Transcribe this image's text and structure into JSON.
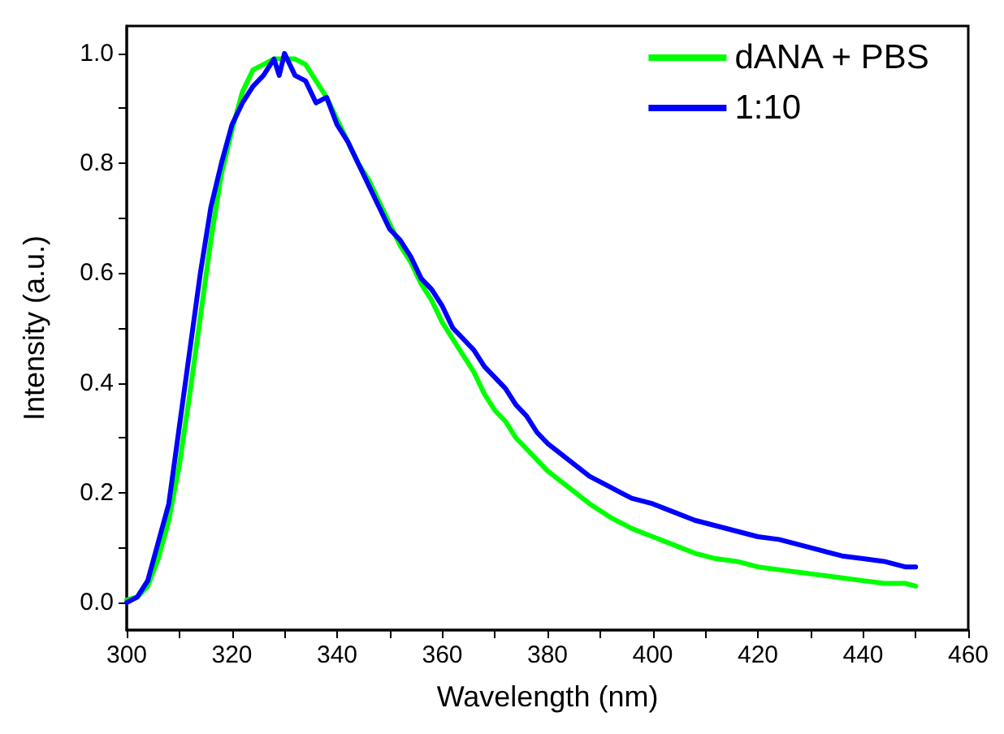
{
  "chart_data": {
    "type": "line",
    "xlabel": "Wavelength (nm)",
    "ylabel": "Intensity (a.u.)",
    "xlim": [
      300,
      460
    ],
    "xticks": [
      300,
      {
        "value": 310,
        "label": null
      },
      320,
      {
        "value": 330,
        "label": null
      },
      340,
      {
        "value": 350,
        "label": null
      },
      360,
      {
        "value": 370,
        "label": null
      },
      380,
      {
        "value": 390,
        "label": null
      },
      400,
      {
        "value": 410,
        "label": null
      },
      420,
      {
        "value": 430,
        "label": null
      },
      440,
      {
        "value": 450,
        "label": null
      },
      460
    ],
    "ylim": [
      -0.05,
      1.05
    ],
    "yticks": [
      {
        "value": 0,
        "label": "0.0"
      },
      {
        "value": 0.1,
        "label": null
      },
      {
        "value": 0.2,
        "label": "0.2"
      },
      {
        "value": 0.3,
        "label": null
      },
      {
        "value": 0.4,
        "label": "0.4"
      },
      {
        "value": 0.5,
        "label": null
      },
      {
        "value": 0.6,
        "label": "0.6"
      },
      {
        "value": 0.7,
        "label": null
      },
      {
        "value": 0.8,
        "label": "0.8"
      },
      {
        "value": 0.9,
        "label": null
      },
      {
        "value": 1,
        "label": "1.0"
      }
    ],
    "grid": false,
    "legend": "top right",
    "marker": "none",
    "line_style": "solid",
    "series": [
      {
        "name": "dANA + PBS",
        "color": "#00ff00",
        "x": [
          300,
          302,
          304,
          306,
          308,
          310,
          312,
          314,
          316,
          318,
          320,
          322,
          324,
          326,
          328,
          330,
          332,
          334,
          336,
          338,
          340,
          342,
          344,
          346,
          348,
          350,
          352,
          354,
          356,
          358,
          360,
          362,
          364,
          366,
          368,
          370,
          372,
          374,
          376,
          378,
          380,
          384,
          388,
          392,
          396,
          400,
          404,
          408,
          412,
          416,
          420,
          424,
          428,
          432,
          436,
          440,
          444,
          448,
          450
        ],
        "values": [
          0.005,
          0.01,
          0.03,
          0.08,
          0.15,
          0.25,
          0.38,
          0.52,
          0.66,
          0.78,
          0.86,
          0.93,
          0.97,
          0.98,
          0.99,
          0.99,
          0.99,
          0.98,
          0.95,
          0.92,
          0.88,
          0.84,
          0.8,
          0.77,
          0.73,
          0.69,
          0.65,
          0.62,
          0.58,
          0.55,
          0.51,
          0.48,
          0.45,
          0.42,
          0.38,
          0.35,
          0.33,
          0.3,
          0.28,
          0.26,
          0.24,
          0.21,
          0.18,
          0.155,
          0.135,
          0.12,
          0.105,
          0.09,
          0.08,
          0.075,
          0.065,
          0.06,
          0.055,
          0.05,
          0.045,
          0.04,
          0.035,
          0.035,
          0.03
        ]
      },
      {
        "name": "1:10",
        "color": "#0000ff",
        "x": [
          300,
          302,
          304,
          306,
          308,
          310,
          312,
          314,
          316,
          318,
          320,
          322,
          324,
          326,
          328,
          329,
          330,
          332,
          334,
          336,
          338,
          340,
          342,
          344,
          346,
          348,
          350,
          352,
          354,
          356,
          358,
          360,
          362,
          364,
          366,
          368,
          370,
          372,
          374,
          376,
          378,
          380,
          384,
          388,
          392,
          396,
          400,
          404,
          408,
          412,
          416,
          420,
          424,
          428,
          432,
          436,
          440,
          444,
          448,
          450
        ],
        "values": [
          0,
          0.01,
          0.04,
          0.11,
          0.18,
          0.32,
          0.46,
          0.6,
          0.72,
          0.8,
          0.87,
          0.91,
          0.94,
          0.96,
          0.99,
          0.96,
          1.0,
          0.96,
          0.95,
          0.91,
          0.92,
          0.87,
          0.84,
          0.8,
          0.76,
          0.72,
          0.68,
          0.66,
          0.63,
          0.59,
          0.57,
          0.54,
          0.5,
          0.48,
          0.46,
          0.43,
          0.41,
          0.39,
          0.36,
          0.34,
          0.31,
          0.29,
          0.26,
          0.23,
          0.21,
          0.19,
          0.18,
          0.165,
          0.15,
          0.14,
          0.13,
          0.12,
          0.115,
          0.105,
          0.095,
          0.085,
          0.08,
          0.075,
          0.065,
          0.065
        ]
      }
    ]
  }
}
